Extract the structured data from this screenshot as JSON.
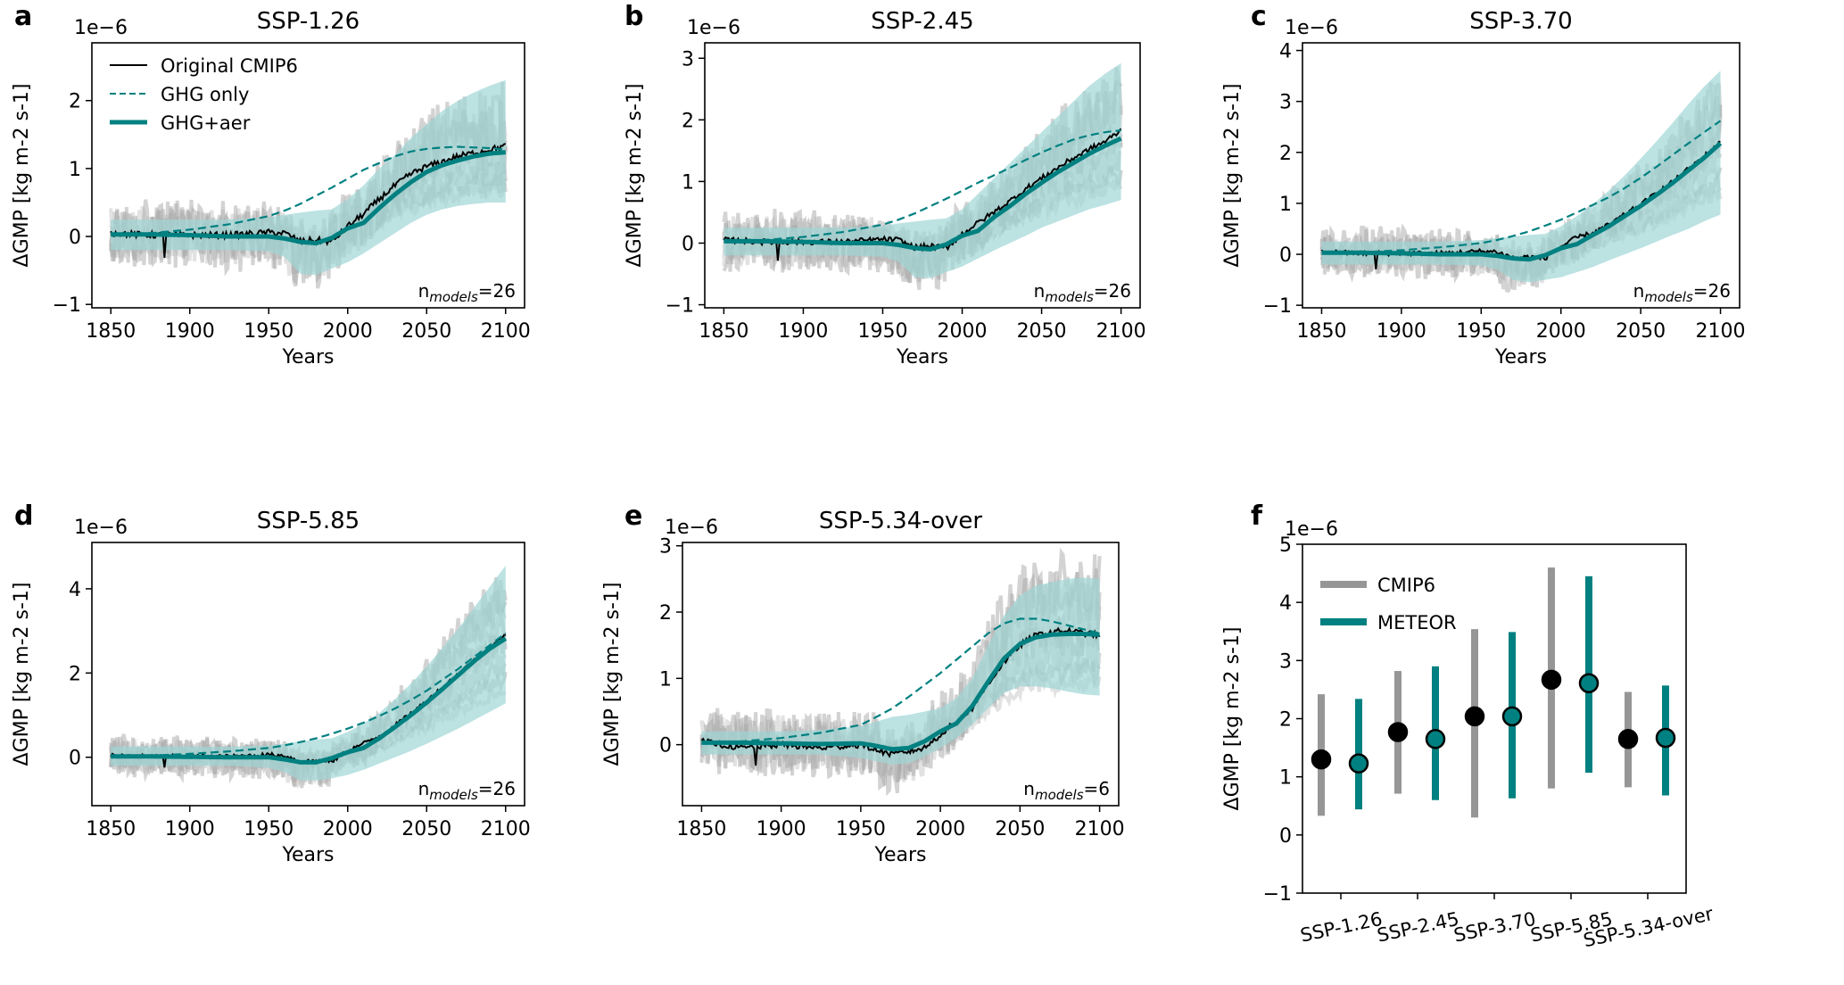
{
  "figure": {
    "colors": {
      "teal": "#008080",
      "teal_band": "#9fd6d6",
      "cmip_gray": "#969696",
      "model_gray": "#9a9a9a",
      "black": "#000000"
    },
    "legend_a": [
      {
        "label": "Original CMIP6",
        "style": "thin-black"
      },
      {
        "label": "GHG only",
        "style": "dashed-teal"
      },
      {
        "label": "GHG+aer",
        "style": "thick-teal"
      }
    ]
  },
  "chart_data": [
    {
      "panel": "a",
      "type": "line",
      "title": "SSP-1.26",
      "xlabel": "Years",
      "ylabel": "ΔGMP [kg m-2 s-1]",
      "offset_text": "1e−6",
      "xlim": [
        1838,
        2112
      ],
      "ylim": [
        -1.05,
        2.85
      ],
      "xticks": [
        1850,
        1900,
        1950,
        2000,
        2050,
        2100
      ],
      "yticks": [
        -1,
        0,
        1,
        2
      ],
      "n_models_label": "n",
      "n_models_sub": "models",
      "n_models_value": "=26",
      "x": [
        1850,
        1875,
        1900,
        1925,
        1950,
        1960,
        1970,
        1980,
        1990,
        2000,
        2010,
        2020,
        2030,
        2040,
        2050,
        2060,
        2070,
        2080,
        2090,
        2100
      ],
      "series": [
        {
          "name": "GHG+aer",
          "values": [
            0.03,
            0.03,
            0.02,
            0.0,
            0.0,
            -0.03,
            -0.08,
            -0.1,
            -0.02,
            0.12,
            0.2,
            0.42,
            0.62,
            0.8,
            0.95,
            1.05,
            1.12,
            1.18,
            1.22,
            1.24
          ]
        },
        {
          "name": "GHG only",
          "values": [
            0.03,
            0.05,
            0.1,
            0.18,
            0.3,
            0.38,
            0.48,
            0.6,
            0.72,
            0.85,
            0.98,
            1.08,
            1.18,
            1.25,
            1.29,
            1.31,
            1.32,
            1.31,
            1.3,
            1.28
          ]
        },
        {
          "name": "Original CMIP6",
          "values": [
            0.05,
            0.02,
            0.02,
            0.02,
            0.06,
            0.05,
            -0.07,
            -0.05,
            -0.08,
            0.15,
            0.33,
            0.55,
            0.75,
            0.92,
            1.03,
            1.1,
            1.18,
            1.23,
            1.28,
            1.33
          ]
        },
        {
          "name": "band_upper",
          "values": [
            0.25,
            0.25,
            0.25,
            0.25,
            0.28,
            0.32,
            0.35,
            0.38,
            0.4,
            0.55,
            0.75,
            1.0,
            1.2,
            1.45,
            1.65,
            1.85,
            2.0,
            2.12,
            2.22,
            2.3
          ]
        },
        {
          "name": "band_lower",
          "values": [
            -0.2,
            -0.2,
            -0.2,
            -0.2,
            -0.22,
            -0.3,
            -0.55,
            -0.57,
            -0.47,
            -0.38,
            -0.25,
            -0.1,
            0.05,
            0.2,
            0.32,
            0.4,
            0.45,
            0.48,
            0.5,
            0.5
          ]
        }
      ]
    },
    {
      "panel": "b",
      "type": "line",
      "title": "SSP-2.45",
      "xlabel": "Years",
      "ylabel": "ΔGMP [kg m-2 s-1]",
      "offset_text": "1e−6",
      "xlim": [
        1838,
        2112
      ],
      "ylim": [
        -1.05,
        3.25
      ],
      "xticks": [
        1850,
        1900,
        1950,
        2000,
        2050,
        2100
      ],
      "yticks": [
        -1,
        0,
        1,
        2,
        3
      ],
      "n_models_label": "n",
      "n_models_sub": "models",
      "n_models_value": "=26",
      "x": [
        1850,
        1875,
        1900,
        1925,
        1950,
        1960,
        1970,
        1980,
        1990,
        2000,
        2010,
        2020,
        2030,
        2040,
        2050,
        2060,
        2070,
        2080,
        2090,
        2100
      ],
      "series": [
        {
          "name": "GHG+aer",
          "values": [
            0.03,
            0.03,
            0.02,
            0.0,
            0.0,
            -0.03,
            -0.08,
            -0.1,
            -0.02,
            0.12,
            0.2,
            0.42,
            0.6,
            0.8,
            0.98,
            1.15,
            1.3,
            1.45,
            1.58,
            1.7
          ]
        },
        {
          "name": "GHG only",
          "values": [
            0.03,
            0.05,
            0.1,
            0.18,
            0.3,
            0.38,
            0.48,
            0.6,
            0.72,
            0.85,
            0.98,
            1.1,
            1.22,
            1.35,
            1.47,
            1.58,
            1.68,
            1.75,
            1.8,
            1.83
          ]
        },
        {
          "name": "Original CMIP6",
          "values": [
            0.05,
            0.02,
            0.02,
            0.02,
            0.06,
            0.05,
            -0.07,
            -0.05,
            -0.08,
            0.15,
            0.33,
            0.5,
            0.68,
            0.88,
            1.05,
            1.22,
            1.38,
            1.52,
            1.65,
            1.83
          ]
        },
        {
          "name": "band_upper",
          "values": [
            0.25,
            0.25,
            0.25,
            0.25,
            0.28,
            0.32,
            0.35,
            0.38,
            0.4,
            0.55,
            0.8,
            1.05,
            1.3,
            1.55,
            1.8,
            2.05,
            2.3,
            2.55,
            2.75,
            2.92
          ]
        },
        {
          "name": "band_lower",
          "values": [
            -0.2,
            -0.2,
            -0.2,
            -0.2,
            -0.22,
            -0.3,
            -0.55,
            -0.57,
            -0.47,
            -0.38,
            -0.25,
            -0.12,
            0.0,
            0.12,
            0.25,
            0.35,
            0.45,
            0.55,
            0.62,
            0.7
          ]
        }
      ]
    },
    {
      "panel": "c",
      "type": "line",
      "title": "SSP-3.70",
      "xlabel": "Years",
      "ylabel": "ΔGMP [kg m-2 s-1]",
      "offset_text": "1e−6",
      "xlim": [
        1838,
        2112
      ],
      "ylim": [
        -1.05,
        4.15
      ],
      "xticks": [
        1850,
        1900,
        1950,
        2000,
        2050,
        2100
      ],
      "yticks": [
        -1,
        0,
        1,
        2,
        3,
        4
      ],
      "n_models_label": "n",
      "n_models_sub": "models",
      "n_models_value": "=26",
      "x": [
        1850,
        1875,
        1900,
        1925,
        1950,
        1960,
        1970,
        1980,
        1990,
        2000,
        2010,
        2020,
        2030,
        2040,
        2050,
        2060,
        2070,
        2080,
        2090,
        2100
      ],
      "series": [
        {
          "name": "GHG+aer",
          "values": [
            0.03,
            0.03,
            0.02,
            0.0,
            0.0,
            -0.03,
            -0.08,
            -0.1,
            -0.02,
            0.12,
            0.2,
            0.38,
            0.55,
            0.75,
            0.95,
            1.17,
            1.4,
            1.65,
            1.9,
            2.18
          ]
        },
        {
          "name": "GHG only",
          "values": [
            0.02,
            0.04,
            0.08,
            0.14,
            0.22,
            0.28,
            0.36,
            0.45,
            0.56,
            0.68,
            0.82,
            0.97,
            1.12,
            1.3,
            1.5,
            1.72,
            1.95,
            2.18,
            2.4,
            2.62
          ]
        },
        {
          "name": "Original CMIP6",
          "values": [
            0.05,
            0.02,
            0.02,
            0.02,
            0.06,
            0.05,
            -0.07,
            -0.05,
            -0.08,
            0.15,
            0.33,
            0.42,
            0.58,
            0.78,
            0.98,
            1.2,
            1.42,
            1.68,
            1.93,
            2.2
          ]
        },
        {
          "name": "band_upper",
          "values": [
            0.25,
            0.25,
            0.25,
            0.25,
            0.28,
            0.32,
            0.35,
            0.38,
            0.4,
            0.55,
            0.75,
            0.98,
            1.25,
            1.55,
            1.88,
            2.22,
            2.58,
            2.95,
            3.3,
            3.6
          ]
        },
        {
          "name": "band_lower",
          "values": [
            -0.2,
            -0.2,
            -0.2,
            -0.2,
            -0.22,
            -0.3,
            -0.5,
            -0.55,
            -0.5,
            -0.45,
            -0.35,
            -0.25,
            -0.12,
            0.0,
            0.12,
            0.25,
            0.38,
            0.5,
            0.65,
            0.78
          ]
        }
      ]
    },
    {
      "panel": "d",
      "type": "line",
      "title": "SSP-5.85",
      "xlabel": "Years",
      "ylabel": "ΔGMP [kg m-2 s-1]",
      "offset_text": "1e−6",
      "xlim": [
        1838,
        2112
      ],
      "ylim": [
        -1.15,
        5.1
      ],
      "xticks": [
        1850,
        1900,
        1950,
        2000,
        2050,
        2100
      ],
      "yticks": [
        0,
        2,
        4
      ],
      "n_models_label": "n",
      "n_models_sub": "models",
      "n_models_value": "=26",
      "x": [
        1850,
        1875,
        1900,
        1925,
        1950,
        1960,
        1970,
        1980,
        1990,
        2000,
        2010,
        2020,
        2030,
        2040,
        2050,
        2060,
        2070,
        2080,
        2090,
        2100
      ],
      "series": [
        {
          "name": "GHG+aer",
          "values": [
            0.02,
            0.02,
            0.01,
            0.0,
            0.0,
            -0.05,
            -0.12,
            -0.12,
            -0.02,
            0.12,
            0.22,
            0.45,
            0.72,
            1.0,
            1.3,
            1.62,
            1.95,
            2.28,
            2.58,
            2.82
          ]
        },
        {
          "name": "GHG only",
          "values": [
            0.02,
            0.04,
            0.08,
            0.14,
            0.22,
            0.28,
            0.36,
            0.45,
            0.56,
            0.68,
            0.82,
            0.98,
            1.16,
            1.36,
            1.58,
            1.84,
            2.1,
            2.38,
            2.66,
            2.95
          ]
        },
        {
          "name": "Original CMIP6",
          "values": [
            0.04,
            0.02,
            0.02,
            0.02,
            0.06,
            0.04,
            -0.1,
            -0.08,
            -0.1,
            0.15,
            0.33,
            0.5,
            0.76,
            1.04,
            1.34,
            1.66,
            1.98,
            2.3,
            2.62,
            2.9
          ]
        },
        {
          "name": "band_upper",
          "values": [
            0.25,
            0.25,
            0.25,
            0.25,
            0.28,
            0.32,
            0.38,
            0.42,
            0.45,
            0.6,
            0.8,
            1.05,
            1.38,
            1.75,
            2.15,
            2.6,
            3.05,
            3.55,
            4.05,
            4.55
          ]
        },
        {
          "name": "band_lower",
          "values": [
            -0.2,
            -0.2,
            -0.2,
            -0.2,
            -0.25,
            -0.35,
            -0.55,
            -0.55,
            -0.5,
            -0.42,
            -0.3,
            -0.15,
            0.0,
            0.15,
            0.32,
            0.5,
            0.68,
            0.88,
            1.08,
            1.28
          ]
        }
      ]
    },
    {
      "panel": "e",
      "type": "line",
      "title": "SSP-5.34-over",
      "xlabel": "Years",
      "ylabel": "ΔGMP [kg m-2 s-1]",
      "offset_text": "1e−6",
      "xlim": [
        1838,
        2112
      ],
      "ylim": [
        -0.92,
        3.05
      ],
      "xticks": [
        1850,
        1900,
        1950,
        2000,
        2050,
        2100
      ],
      "yticks": [
        0,
        1,
        2,
        3
      ],
      "n_models_label": "n",
      "n_models_sub": "models",
      "n_models_value": "=6",
      "x": [
        1850,
        1875,
        1900,
        1925,
        1950,
        1960,
        1970,
        1980,
        1990,
        2000,
        2010,
        2020,
        2030,
        2040,
        2050,
        2060,
        2070,
        2080,
        2090,
        2100
      ],
      "series": [
        {
          "name": "GHG+aer",
          "values": [
            0.03,
            0.03,
            0.02,
            0.01,
            0.02,
            -0.02,
            -0.07,
            -0.05,
            0.05,
            0.2,
            0.32,
            0.58,
            0.95,
            1.3,
            1.52,
            1.62,
            1.66,
            1.67,
            1.67,
            1.66
          ]
        },
        {
          "name": "GHG only",
          "values": [
            0.03,
            0.05,
            0.1,
            0.18,
            0.3,
            0.42,
            0.55,
            0.72,
            0.9,
            1.08,
            1.28,
            1.48,
            1.68,
            1.83,
            1.9,
            1.9,
            1.86,
            1.8,
            1.74,
            1.68
          ]
        },
        {
          "name": "Original CMIP6",
          "values": [
            0.05,
            -0.05,
            0.0,
            -0.05,
            0.0,
            -0.08,
            -0.15,
            -0.1,
            -0.05,
            0.15,
            0.35,
            0.55,
            0.92,
            1.25,
            1.5,
            1.65,
            1.7,
            1.72,
            1.68,
            1.65
          ]
        },
        {
          "name": "band_upper",
          "values": [
            0.2,
            0.2,
            0.2,
            0.22,
            0.28,
            0.35,
            0.42,
            0.45,
            0.5,
            0.55,
            0.7,
            1.0,
            1.5,
            1.95,
            2.25,
            2.4,
            2.45,
            2.5,
            2.52,
            2.5
          ]
        },
        {
          "name": "band_lower",
          "values": [
            -0.15,
            -0.15,
            -0.15,
            -0.15,
            -0.2,
            -0.25,
            -0.3,
            -0.28,
            -0.18,
            -0.05,
            0.1,
            0.3,
            0.55,
            0.78,
            0.88,
            0.88,
            0.85,
            0.8,
            0.76,
            0.74
          ]
        }
      ]
    },
    {
      "panel": "f",
      "type": "scatter",
      "title": "",
      "xlabel": "",
      "ylabel": "ΔGMP [kg m-2 s-1]",
      "offset_text": "1e−6",
      "ylim": [
        -1,
        5
      ],
      "yticks": [
        -1,
        0,
        1,
        2,
        3,
        4,
        5
      ],
      "categories": [
        "SSP-1.26",
        "SSP-2.45",
        "SSP-3.70",
        "SSP-5.85",
        "SSP-5.34-over"
      ],
      "legend": [
        "CMIP6",
        "METEOR"
      ],
      "legend_position": "top-left",
      "series": [
        {
          "name": "CMIP6",
          "values": [
            1.3,
            1.77,
            2.04,
            2.67,
            1.65
          ],
          "low": [
            0.33,
            0.71,
            0.3,
            0.8,
            0.82
          ],
          "high": [
            2.42,
            2.82,
            3.54,
            4.6,
            2.46
          ]
        },
        {
          "name": "METEOR",
          "values": [
            1.23,
            1.65,
            2.04,
            2.61,
            1.67
          ],
          "low": [
            0.44,
            0.6,
            0.63,
            1.07,
            0.68
          ],
          "high": [
            2.34,
            2.9,
            3.49,
            4.45,
            2.57
          ]
        }
      ]
    }
  ]
}
